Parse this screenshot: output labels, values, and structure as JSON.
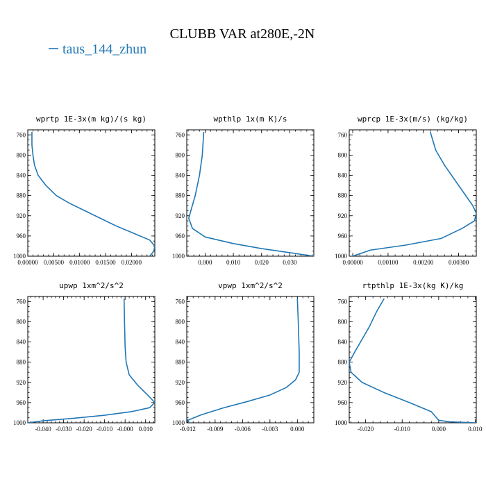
{
  "figure": {
    "title": "CLUBB VAR at280E,-2N",
    "legend_label": "taus_144_zhun",
    "series_color": "#1f77b4"
  },
  "chart_data": [
    {
      "type": "line",
      "title": "wprtp  1E-3x(m kg)/(s kg)",
      "series_name": "taus_144_zhun",
      "xlim": [
        0.0,
        0.0245
      ],
      "ylim": [
        1000,
        750
      ],
      "xticks": [
        0.0,
        0.005,
        0.01,
        0.015,
        0.02
      ],
      "xtick_labels": [
        "0.00000",
        "0.00500",
        "0.01000",
        "0.01500",
        "0.02000"
      ],
      "yticks": [
        760,
        800,
        840,
        880,
        920,
        960,
        1000
      ],
      "ytick_labels": [
        "760",
        "800",
        "840",
        "880",
        "920",
        "960",
        "1000"
      ],
      "points": [
        [
          0.0008,
          755
        ],
        [
          0.0008,
          780
        ],
        [
          0.001,
          800
        ],
        [
          0.0013,
          820
        ],
        [
          0.002,
          840
        ],
        [
          0.0035,
          860
        ],
        [
          0.0055,
          880
        ],
        [
          0.008,
          895
        ],
        [
          0.011,
          910
        ],
        [
          0.014,
          925
        ],
        [
          0.017,
          940
        ],
        [
          0.0205,
          955
        ],
        [
          0.0235,
          968
        ],
        [
          0.0245,
          980
        ],
        [
          0.0243,
          990
        ],
        [
          0.0235,
          1000
        ]
      ]
    },
    {
      "type": "line",
      "title": "wpthlp  1x(m K)/s",
      "series_name": "taus_144_zhun",
      "xlim": [
        -0.0065,
        0.0385
      ],
      "ylim": [
        1000,
        750
      ],
      "xticks": [
        0.0,
        0.01,
        0.02,
        0.03
      ],
      "xtick_labels": [
        "0.000",
        "0.010",
        "0.020",
        "0.030"
      ],
      "yticks": [
        760,
        800,
        840,
        880,
        920,
        960,
        1000
      ],
      "ytick_labels": [
        "760",
        "800",
        "840",
        "880",
        "920",
        "960",
        "1000"
      ],
      "points": [
        [
          -0.0005,
          755
        ],
        [
          -0.001,
          800
        ],
        [
          -0.002,
          840
        ],
        [
          -0.0035,
          880
        ],
        [
          -0.0048,
          905
        ],
        [
          -0.0058,
          925
        ],
        [
          -0.0045,
          945
        ],
        [
          0.0,
          962
        ],
        [
          0.01,
          975
        ],
        [
          0.02,
          985
        ],
        [
          0.03,
          993
        ],
        [
          0.0385,
          1000
        ]
      ]
    },
    {
      "type": "line",
      "title": "wprcp  1E-3x(m/s) (kg/kg)",
      "series_name": "taus_144_zhun",
      "xlim": [
        -0.0001,
        0.0035
      ],
      "ylim": [
        1000,
        750
      ],
      "xticks": [
        0.0,
        0.001,
        0.002,
        0.003
      ],
      "xtick_labels": [
        "0.00000",
        "0.00100",
        "0.00200",
        "0.00300"
      ],
      "yticks": [
        760,
        800,
        840,
        880,
        920,
        960,
        1000
      ],
      "ytick_labels": [
        "760",
        "800",
        "840",
        "880",
        "920",
        "960",
        "1000"
      ],
      "points": [
        [
          0.0022,
          755
        ],
        [
          0.00235,
          790
        ],
        [
          0.0026,
          820
        ],
        [
          0.0029,
          850
        ],
        [
          0.0032,
          880
        ],
        [
          0.0034,
          900
        ],
        [
          0.0035,
          915
        ],
        [
          0.00345,
          930
        ],
        [
          0.0031,
          945
        ],
        [
          0.0025,
          965
        ],
        [
          0.0015,
          978
        ],
        [
          0.0005,
          988
        ],
        [
          0.0,
          1000
        ]
      ]
    },
    {
      "type": "line",
      "title": "upwp  1xm^2/s^2",
      "series_name": "taus_144_zhun",
      "xlim": [
        -0.0475,
        0.0145
      ],
      "ylim": [
        1000,
        750
      ],
      "xticks": [
        -0.04,
        -0.03,
        -0.02,
        -0.01,
        0.0,
        0.01
      ],
      "xtick_labels": [
        "-0.040",
        "-0.030",
        "-0.020",
        "-0.010",
        "-0.000",
        "0.010"
      ],
      "yticks": [
        760,
        800,
        840,
        880,
        920,
        960,
        1000
      ],
      "ytick_labels": [
        "760",
        "800",
        "840",
        "880",
        "920",
        "960",
        "1000"
      ],
      "points": [
        [
          -0.0005,
          755
        ],
        [
          -0.0003,
          800
        ],
        [
          0.0,
          850
        ],
        [
          0.0005,
          880
        ],
        [
          0.002,
          905
        ],
        [
          0.006,
          925
        ],
        [
          0.011,
          945
        ],
        [
          0.0145,
          960
        ],
        [
          0.012,
          970
        ],
        [
          0.003,
          978
        ],
        [
          -0.01,
          985
        ],
        [
          -0.025,
          991
        ],
        [
          -0.04,
          996
        ],
        [
          -0.0475,
          1000
        ]
      ]
    },
    {
      "type": "line",
      "title": "vpwp  1xm^2/s^2",
      "series_name": "taus_144_zhun",
      "xlim": [
        -0.0121,
        0.0018
      ],
      "ylim": [
        1000,
        750
      ],
      "xticks": [
        -0.012,
        -0.009,
        -0.006,
        -0.003,
        0.0
      ],
      "xtick_labels": [
        "-0.012",
        "-0.009",
        "-0.006",
        "-0.003",
        "0.000"
      ],
      "yticks": [
        760,
        800,
        840,
        880,
        920,
        960,
        1000
      ],
      "ytick_labels": [
        "760",
        "800",
        "840",
        "880",
        "920",
        "960",
        "1000"
      ],
      "points": [
        [
          0.0,
          755
        ],
        [
          0.0001,
          800
        ],
        [
          0.0002,
          860
        ],
        [
          0.0002,
          900
        ],
        [
          -0.0002,
          915
        ],
        [
          -0.0012,
          930
        ],
        [
          -0.003,
          945
        ],
        [
          -0.0055,
          958
        ],
        [
          -0.008,
          970
        ],
        [
          -0.0105,
          984
        ],
        [
          -0.012,
          995
        ],
        [
          -0.0118,
          1000
        ]
      ]
    },
    {
      "type": "line",
      "title": "rtpthlp  1E-3x(kg K)/kg",
      "series_name": "taus_144_zhun",
      "xlim": [
        -0.0245,
        0.0103
      ],
      "ylim": [
        1000,
        750
      ],
      "xticks": [
        -0.02,
        -0.01,
        0.0,
        0.01
      ],
      "xtick_labels": [
        "-0.020",
        "-0.010",
        "0.000",
        "0.010"
      ],
      "yticks": [
        760,
        800,
        840,
        880,
        920,
        960,
        1000
      ],
      "ytick_labels": [
        "760",
        "800",
        "840",
        "880",
        "920",
        "960",
        "1000"
      ],
      "points": [
        [
          -0.015,
          755
        ],
        [
          -0.017,
          780
        ],
        [
          -0.019,
          810
        ],
        [
          -0.021,
          835
        ],
        [
          -0.023,
          860
        ],
        [
          -0.0245,
          880
        ],
        [
          -0.024,
          900
        ],
        [
          -0.021,
          920
        ],
        [
          -0.015,
          940
        ],
        [
          -0.008,
          960
        ],
        [
          -0.002,
          978
        ],
        [
          0.0,
          995
        ],
        [
          0.003,
          998
        ],
        [
          0.0103,
          1000
        ]
      ]
    }
  ]
}
